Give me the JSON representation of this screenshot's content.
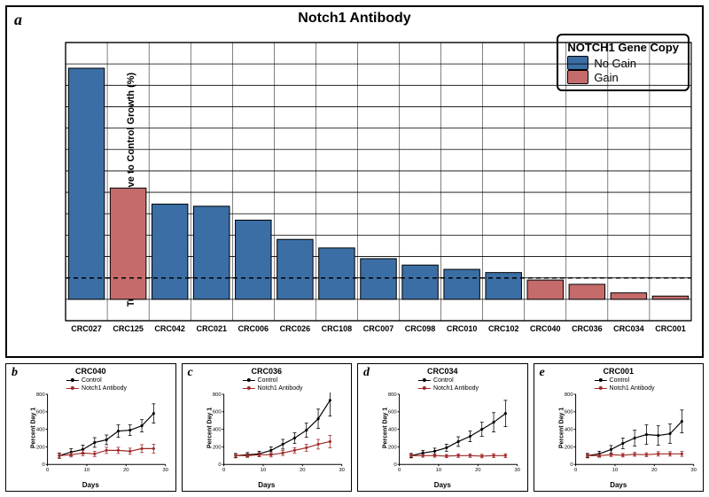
{
  "main": {
    "panel_label": "a",
    "title": "Notch1 Antibody",
    "title_fontsize": 16,
    "type": "bar",
    "ylabel": "Tumor Growth Rate  Relative to Control Growth (%)",
    "ylabel_fontsize": 11,
    "ylim": [
      -20,
      240
    ],
    "ytick_step": 20,
    "threshold_line": 20,
    "threshold_dash": "5,4",
    "background_color": "#ffffff",
    "axis_color": "#000000",
    "grid_color": "#000000",
    "bar_border_color": "#000000",
    "bar_width": 0.86,
    "xlabel_fontsize": 9,
    "ytick_fontsize": 10,
    "categories": [
      "CRC027",
      "CRC125",
      "CRC042",
      "CRC021",
      "CRC006",
      "CRC026",
      "CRC108",
      "CRC007",
      "CRC098",
      "CRC010",
      "CRC102",
      "CRC040",
      "CRC036",
      "CRC034",
      "CRC001"
    ],
    "values": [
      216,
      104,
      89,
      87,
      74,
      56,
      48,
      38,
      32,
      28,
      25,
      18,
      14,
      6,
      3
    ],
    "groups": [
      "no_gain",
      "gain",
      "no_gain",
      "no_gain",
      "no_gain",
      "no_gain",
      "no_gain",
      "no_gain",
      "no_gain",
      "no_gain",
      "no_gain",
      "gain",
      "gain",
      "gain",
      "gain"
    ],
    "colors": {
      "no_gain": "#3b6ea5",
      "gain": "#c56b6b"
    },
    "legend": {
      "title": "NOTCH1 Gene Copy",
      "items": [
        {
          "label": "No Gain",
          "color": "#3b6ea5"
        },
        {
          "label": "Gain",
          "color": "#c56b6b"
        }
      ]
    }
  },
  "subplots": [
    {
      "panel_label": "b",
      "title": "CRC040",
      "ylabel": "Percent Day 1",
      "xlabel": "Days",
      "xlim": [
        0,
        30
      ],
      "ylim": [
        0,
        800
      ],
      "ytick_step": 200,
      "xtick_step": 10,
      "series_colors": {
        "control": "#000000",
        "treat": "#a02828"
      },
      "legend": [
        {
          "label": "Control",
          "color": "#000000"
        },
        {
          "label": "Notch1 Antibody",
          "color": "#a02828"
        }
      ],
      "x": [
        3,
        6,
        9,
        12,
        15,
        18,
        21,
        24,
        27
      ],
      "control": {
        "y": [
          100,
          140,
          170,
          250,
          280,
          380,
          390,
          440,
          580
        ],
        "err": [
          30,
          40,
          50,
          55,
          55,
          70,
          60,
          70,
          110
        ]
      },
      "treat": {
        "y": [
          100,
          110,
          130,
          120,
          160,
          160,
          150,
          180,
          180
        ],
        "err": [
          25,
          25,
          30,
          30,
          35,
          35,
          35,
          45,
          50
        ]
      }
    },
    {
      "panel_label": "c",
      "title": "CRC036",
      "ylabel": "Percent Day 1",
      "xlabel": "Days",
      "xlim": [
        0,
        30
      ],
      "ylim": [
        0,
        800
      ],
      "ytick_step": 200,
      "xtick_step": 10,
      "series_colors": {
        "control": "#000000",
        "treat": "#a02828"
      },
      "legend": [
        {
          "label": "Control",
          "color": "#000000"
        },
        {
          "label": "Notch1 Antibody",
          "color": "#a02828"
        }
      ],
      "x": [
        3,
        6,
        9,
        12,
        15,
        18,
        21,
        24,
        27
      ],
      "control": {
        "y": [
          100,
          110,
          120,
          160,
          230,
          300,
          390,
          520,
          730
        ],
        "err": [
          25,
          25,
          30,
          40,
          55,
          60,
          80,
          110,
          180
        ]
      },
      "treat": {
        "y": [
          100,
          100,
          110,
          110,
          130,
          160,
          190,
          230,
          260
        ],
        "err": [
          20,
          20,
          22,
          25,
          28,
          30,
          40,
          55,
          70
        ]
      }
    },
    {
      "panel_label": "d",
      "title": "CRC034",
      "ylabel": "Percent Day 1",
      "xlabel": "Days",
      "xlim": [
        0,
        30
      ],
      "ylim": [
        0,
        800
      ],
      "ytick_step": 200,
      "xtick_step": 10,
      "series_colors": {
        "control": "#000000",
        "treat": "#a02828"
      },
      "legend": [
        {
          "label": "Control",
          "color": "#000000"
        },
        {
          "label": "Notch1 Antibody",
          "color": "#a02828"
        }
      ],
      "x": [
        3,
        6,
        9,
        12,
        15,
        18,
        21,
        24,
        27
      ],
      "control": {
        "y": [
          100,
          130,
          150,
          190,
          260,
          320,
          400,
          480,
          580
        ],
        "err": [
          25,
          30,
          35,
          40,
          55,
          60,
          80,
          110,
          150
        ]
      },
      "treat": {
        "y": [
          100,
          100,
          100,
          95,
          100,
          100,
          95,
          100,
          100
        ],
        "err": [
          18,
          18,
          18,
          18,
          20,
          20,
          20,
          22,
          22
        ]
      }
    },
    {
      "panel_label": "e",
      "title": "CRC001",
      "ylabel": "Percent Day 1",
      "xlabel": "Days",
      "xlim": [
        0,
        30
      ],
      "ylim": [
        0,
        800
      ],
      "ytick_step": 200,
      "xtick_step": 10,
      "series_colors": {
        "control": "#000000",
        "treat": "#a02828"
      },
      "legend": [
        {
          "label": "Control",
          "color": "#000000"
        },
        {
          "label": "Notch1 Antibody",
          "color": "#a02828"
        }
      ],
      "x": [
        3,
        6,
        9,
        12,
        15,
        18,
        21,
        24,
        27
      ],
      "control": {
        "y": [
          100,
          120,
          170,
          240,
          300,
          340,
          330,
          350,
          490
        ],
        "err": [
          25,
          30,
          45,
          60,
          90,
          110,
          110,
          110,
          130
        ]
      },
      "treat": {
        "y": [
          100,
          100,
          110,
          105,
          115,
          110,
          120,
          120,
          120
        ],
        "err": [
          18,
          18,
          20,
          20,
          22,
          22,
          25,
          25,
          28
        ]
      }
    }
  ]
}
